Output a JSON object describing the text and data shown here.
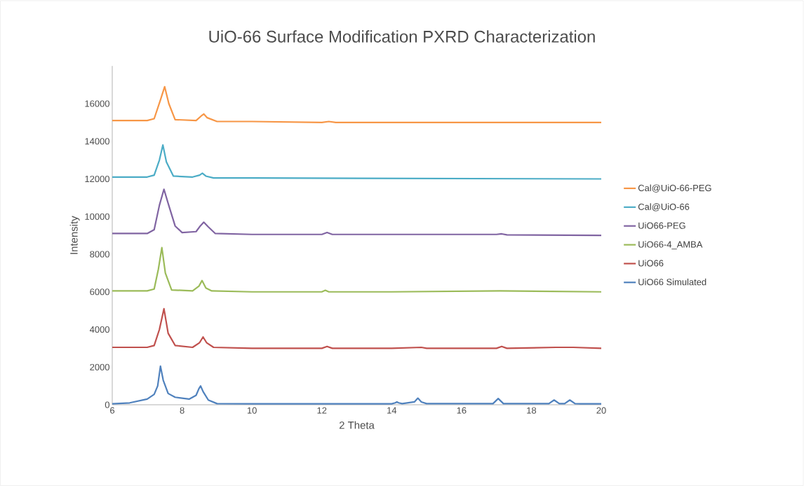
{
  "chart_data": {
    "type": "line",
    "title": "UiO-66 Surface Modification PXRD Characterization",
    "xlabel": "2 Theta",
    "ylabel": "Intensity",
    "xlim": [
      6,
      20
    ],
    "xticks": [
      6,
      8,
      10,
      12,
      14,
      16,
      18,
      20
    ],
    "ylim": [
      0,
      18000
    ],
    "yticks": [
      0,
      2000,
      4000,
      6000,
      8000,
      10000,
      12000,
      14000,
      16000
    ],
    "grid": false,
    "legend": "right",
    "marker": "none",
    "line_style": "solid",
    "series": [
      {
        "name": "UiO66 Simulated",
        "color": "#4f81bd",
        "x": [
          6,
          6.5,
          7,
          7.2,
          7.3,
          7.38,
          7.46,
          7.6,
          7.8,
          8.2,
          8.4,
          8.48,
          8.53,
          8.6,
          8.75,
          9,
          10,
          14,
          14.1,
          14.15,
          14.2,
          14.3,
          14.65,
          14.75,
          14.85,
          15,
          16.9,
          17.05,
          17.2,
          18.5,
          18.65,
          18.8,
          18.95,
          19.1,
          19.25,
          19.4,
          20
        ],
        "values": [
          50,
          100,
          300,
          550,
          1000,
          2050,
          1300,
          600,
          400,
          300,
          500,
          850,
          1000,
          700,
          250,
          60,
          50,
          50,
          100,
          150,
          100,
          60,
          150,
          350,
          150,
          60,
          60,
          330,
          60,
          60,
          250,
          60,
          60,
          250,
          60,
          50,
          50
        ]
      },
      {
        "name": "UiO66",
        "color": "#c0504d",
        "x": [
          6,
          7,
          7.2,
          7.35,
          7.48,
          7.6,
          7.8,
          8.3,
          8.5,
          8.6,
          8.7,
          8.9,
          10,
          12,
          12.15,
          12.3,
          14,
          14.85,
          15,
          17,
          17.15,
          17.3,
          18.7,
          19.2,
          20
        ],
        "values": [
          3050,
          3050,
          3150,
          4000,
          5100,
          3800,
          3150,
          3050,
          3300,
          3600,
          3300,
          3050,
          3000,
          3000,
          3100,
          3000,
          3000,
          3050,
          3000,
          3000,
          3100,
          3000,
          3050,
          3050,
          3000
        ]
      },
      {
        "name": "UiO66-4_AMBA",
        "color": "#9bbb59",
        "x": [
          6,
          7,
          7.2,
          7.32,
          7.42,
          7.52,
          7.7,
          8.3,
          8.48,
          8.57,
          8.68,
          8.85,
          10,
          12,
          12.1,
          12.2,
          14,
          17.1,
          20
        ],
        "values": [
          6050,
          6050,
          6150,
          7200,
          8350,
          7000,
          6100,
          6050,
          6300,
          6600,
          6200,
          6050,
          6000,
          6000,
          6080,
          6000,
          6000,
          6050,
          6000
        ]
      },
      {
        "name": "UiO66-PEG",
        "color": "#8064a2",
        "x": [
          6,
          7,
          7.2,
          7.35,
          7.48,
          7.6,
          7.8,
          8.0,
          8.4,
          8.52,
          8.62,
          8.75,
          8.95,
          10,
          12,
          12.15,
          12.3,
          14,
          17,
          17.15,
          17.3,
          20
        ],
        "values": [
          9100,
          9100,
          9300,
          10600,
          11450,
          10700,
          9500,
          9150,
          9200,
          9500,
          9700,
          9450,
          9100,
          9050,
          9050,
          9150,
          9050,
          9050,
          9050,
          9080,
          9030,
          9000
        ]
      },
      {
        "name": "Cal@UiO-66",
        "color": "#4bacc6",
        "x": [
          6,
          7,
          7.2,
          7.35,
          7.45,
          7.55,
          7.75,
          8.3,
          8.5,
          8.58,
          8.68,
          8.9,
          10,
          20
        ],
        "values": [
          12100,
          12100,
          12200,
          13000,
          13800,
          12900,
          12150,
          12100,
          12200,
          12300,
          12150,
          12050,
          12050,
          12000
        ]
      },
      {
        "name": "Cal@UiO-66-PEG",
        "color": "#f79646",
        "x": [
          6,
          7,
          7.2,
          7.38,
          7.5,
          7.62,
          7.8,
          8.4,
          8.55,
          8.62,
          8.72,
          9,
          10,
          12,
          12.2,
          12.4,
          20
        ],
        "values": [
          15100,
          15100,
          15200,
          16200,
          16900,
          16000,
          15150,
          15100,
          15350,
          15450,
          15250,
          15050,
          15050,
          15000,
          15050,
          15000,
          15000
        ]
      }
    ]
  }
}
